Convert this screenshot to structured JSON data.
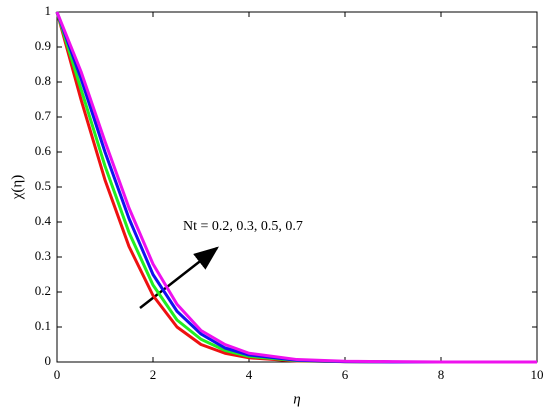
{
  "chart_data": {
    "type": "line",
    "x_label": "η",
    "y_label": "χ(η)",
    "annotation": "Nt = 0.2, 0.3, 0.5, 0.7",
    "x": [
      0,
      0.5,
      1,
      1.5,
      2,
      2.5,
      3,
      3.5,
      4,
      5,
      6,
      7,
      8,
      9,
      10
    ],
    "series": [
      {
        "color": "#ee1111",
        "values": [
          1,
          0.75,
          0.52,
          0.33,
          0.19,
          0.1,
          0.05,
          0.025,
          0.012,
          0.003,
          0.001,
          0,
          0,
          0,
          0
        ]
      },
      {
        "color": "#22ee22",
        "values": [
          1,
          0.78,
          0.56,
          0.37,
          0.22,
          0.12,
          0.065,
          0.033,
          0.016,
          0.004,
          0.001,
          0,
          0,
          0,
          0
        ]
      },
      {
        "color": "#1111ee",
        "values": [
          1,
          0.81,
          0.6,
          0.41,
          0.25,
          0.145,
          0.08,
          0.04,
          0.02,
          0.005,
          0.001,
          0,
          0,
          0,
          0
        ]
      },
      {
        "color": "#ee11ee",
        "values": [
          1,
          0.83,
          0.63,
          0.44,
          0.28,
          0.165,
          0.09,
          0.05,
          0.025,
          0.007,
          0.002,
          0.001,
          0,
          0,
          0
        ]
      }
    ],
    "xlim": [
      0,
      10
    ],
    "xticks": [
      0,
      2,
      4,
      6,
      8,
      10
    ],
    "ylim": [
      0,
      1
    ],
    "yticks": [
      0,
      0.1,
      0.2,
      0.3,
      0.4,
      0.5,
      0.6,
      0.7,
      0.8,
      0.9,
      1
    ],
    "grid": false
  }
}
